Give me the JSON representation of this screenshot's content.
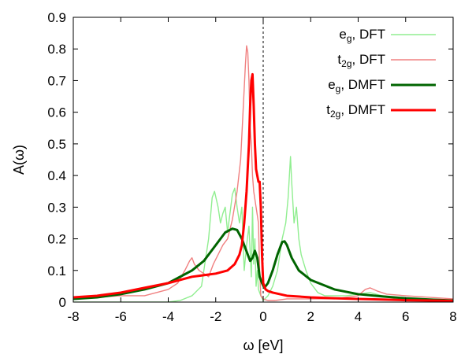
{
  "chart_data": {
    "type": "line",
    "xlabel": "ω [eV]",
    "ylabel": "A(ω)",
    "xlim": [
      -8,
      8
    ],
    "ylim": [
      0,
      0.9
    ],
    "x_ticks": [
      "-8",
      "-6",
      "-4",
      "-2",
      "0",
      "2",
      "4",
      "6",
      "8"
    ],
    "y_ticks": [
      "0",
      "0.1",
      "0.2",
      "0.3",
      "0.4",
      "0.5",
      "0.6",
      "0.7",
      "0.8",
      "0.9"
    ],
    "x_tick_values": [
      -8,
      -6,
      -4,
      -2,
      0,
      2,
      4,
      6,
      8
    ],
    "y_tick_values": [
      0,
      0.1,
      0.2,
      0.3,
      0.4,
      0.5,
      0.6,
      0.7,
      0.8,
      0.9
    ],
    "fermi_level_x": 0,
    "legend_position": "top-right",
    "grid": false,
    "series": [
      {
        "name": "e_g, DFT",
        "name_main": "e",
        "name_sub": "g",
        "name_rest": ", DFT",
        "color": "#90ee90",
        "width": 1.4,
        "x": [
          -8,
          -6,
          -4,
          -3.5,
          -3,
          -2.6,
          -2.3,
          -2.15,
          -2.05,
          -1.9,
          -1.8,
          -1.7,
          -1.6,
          -1.5,
          -1.4,
          -1.3,
          -1.2,
          -1.1,
          -1.0,
          -0.9,
          -0.8,
          -0.7,
          -0.6,
          -0.5,
          -0.45,
          -0.4,
          -0.35,
          -0.3,
          -0.25,
          -0.2,
          -0.1,
          0,
          0.2,
          0.4,
          0.6,
          0.8,
          0.95,
          1.05,
          1.15,
          1.2,
          1.3,
          1.4,
          1.5,
          1.6,
          1.8,
          2.0,
          2.3,
          2.6,
          3.0,
          3.5,
          4.0,
          4.5,
          5,
          6,
          7,
          8
        ],
        "y": [
          0.0,
          0.0,
          0.0,
          0.005,
          0.02,
          0.05,
          0.2,
          0.33,
          0.35,
          0.3,
          0.25,
          0.28,
          0.3,
          0.22,
          0.28,
          0.34,
          0.36,
          0.3,
          0.25,
          0.3,
          0.1,
          0.18,
          0.24,
          0.08,
          0.3,
          0.12,
          0.2,
          0.05,
          0.1,
          0.04,
          0.02,
          0.005,
          0.02,
          0.05,
          0.1,
          0.2,
          0.25,
          0.33,
          0.46,
          0.38,
          0.25,
          0.3,
          0.2,
          0.15,
          0.1,
          0.06,
          0.03,
          0.02,
          0.02,
          0.02,
          0.025,
          0.03,
          0.02,
          0.01,
          0.005,
          0.0
        ]
      },
      {
        "name": "t_2g, DFT",
        "name_main": "t",
        "name_sub": "2g",
        "name_rest": ", DFT",
        "color": "#f08080",
        "width": 1.4,
        "x": [
          -8,
          -6,
          -5,
          -4,
          -3.6,
          -3.3,
          -3.1,
          -3.0,
          -2.9,
          -2.7,
          -2.5,
          -2.3,
          -2.1,
          -1.9,
          -1.7,
          -1.5,
          -1.3,
          -1.1,
          -0.95,
          -0.85,
          -0.75,
          -0.7,
          -0.65,
          -0.6,
          -0.55,
          -0.5,
          -0.45,
          -0.4,
          -0.3,
          -0.2,
          -0.15,
          -0.1,
          0,
          0.2,
          0.5,
          1.0,
          2.0,
          3.0,
          4.0,
          4.3,
          4.5,
          4.8,
          5.2,
          6,
          7,
          8
        ],
        "y": [
          0.01,
          0.02,
          0.02,
          0.04,
          0.06,
          0.1,
          0.13,
          0.14,
          0.12,
          0.1,
          0.09,
          0.08,
          0.12,
          0.15,
          0.18,
          0.2,
          0.26,
          0.35,
          0.45,
          0.6,
          0.75,
          0.81,
          0.79,
          0.7,
          0.55,
          0.5,
          0.4,
          0.35,
          0.3,
          0.25,
          0.1,
          0.02,
          0.01,
          0.005,
          0.005,
          0.01,
          0.01,
          0.01,
          0.02,
          0.04,
          0.045,
          0.035,
          0.025,
          0.02,
          0.015,
          0.01
        ]
      },
      {
        "name": "e_g, DMFT",
        "name_main": "e",
        "name_sub": "g",
        "name_rest": ", DMFT",
        "color": "#006400",
        "width": 3,
        "x": [
          -8,
          -7,
          -6,
          -5,
          -4,
          -3,
          -2.5,
          -2,
          -1.6,
          -1.3,
          -1.1,
          -0.9,
          -0.7,
          -0.55,
          -0.45,
          -0.35,
          -0.25,
          -0.15,
          -0.05,
          0.05,
          0.2,
          0.4,
          0.6,
          0.8,
          0.9,
          1.0,
          1.2,
          1.5,
          2.0,
          3.0,
          4.0,
          5.0,
          6.0,
          7.0,
          8.0
        ],
        "y": [
          0.01,
          0.015,
          0.025,
          0.04,
          0.06,
          0.1,
          0.13,
          0.18,
          0.22,
          0.232,
          0.228,
          0.2,
          0.16,
          0.13,
          0.14,
          0.162,
          0.14,
          0.08,
          0.06,
          0.045,
          0.06,
          0.1,
          0.15,
          0.19,
          0.192,
          0.18,
          0.14,
          0.1,
          0.07,
          0.04,
          0.025,
          0.018,
          0.012,
          0.008,
          0.005
        ]
      },
      {
        "name": "t_2g, DMFT",
        "name_main": "t",
        "name_sub": "2g",
        "name_rest": ", DMFT",
        "color": "#ff0000",
        "width": 3,
        "x": [
          -8,
          -7,
          -6,
          -5,
          -4,
          -3,
          -2,
          -1.5,
          -1.2,
          -1.0,
          -0.9,
          -0.8,
          -0.7,
          -0.6,
          -0.55,
          -0.5,
          -0.45,
          -0.4,
          -0.35,
          -0.3,
          -0.25,
          -0.2,
          -0.15,
          -0.1,
          -0.05,
          0.0,
          0.1,
          0.2,
          0.4,
          0.7,
          1.0,
          2.0,
          3.0,
          4.0,
          5.0,
          6.0,
          7.0,
          8.0
        ],
        "y": [
          0.015,
          0.02,
          0.03,
          0.045,
          0.06,
          0.08,
          0.09,
          0.1,
          0.12,
          0.15,
          0.18,
          0.25,
          0.35,
          0.5,
          0.62,
          0.7,
          0.72,
          0.62,
          0.5,
          0.42,
          0.4,
          0.38,
          0.38,
          0.3,
          0.15,
          0.06,
          0.04,
          0.035,
          0.03,
          0.025,
          0.02,
          0.015,
          0.012,
          0.01,
          0.008,
          0.006,
          0.005,
          0.004
        ]
      }
    ]
  }
}
